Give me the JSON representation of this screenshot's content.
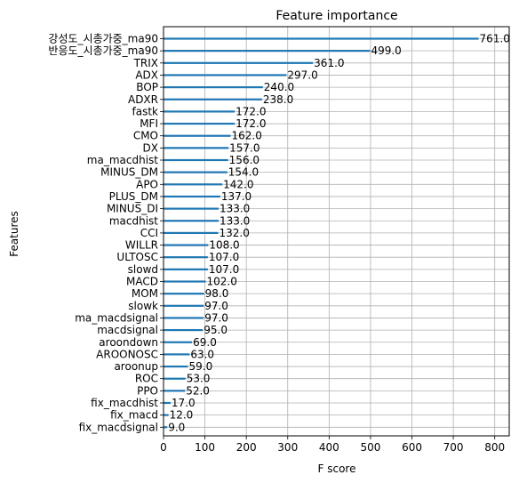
{
  "chart_data": {
    "type": "bar",
    "orientation": "horizontal",
    "title": "Feature importance",
    "xlabel": "F score",
    "ylabel": "Features",
    "xlim": [
      0,
      835
    ],
    "xticks": [
      0,
      100,
      200,
      300,
      400,
      500,
      600,
      700,
      800
    ],
    "grid": true,
    "bar_color": "#1f77b4",
    "categories": [
      "강성도_시총가중_ma90",
      "반응도_시총가중_ma90",
      "TRIX",
      "ADX",
      "BOP",
      "ADXR",
      "fastk",
      "MFI",
      "CMO",
      "DX",
      "ma_macdhist",
      "MINUS_DM",
      "APO",
      "PLUS_DM",
      "MINUS_DI",
      "macdhist",
      "CCI",
      "WILLR",
      "ULTOSC",
      "slowd",
      "MACD",
      "MOM",
      "slowk",
      "ma_macdsignal",
      "macdsignal",
      "aroondown",
      "AROONOSC",
      "aroonup",
      "ROC",
      "PPO",
      "fix_macdhist",
      "fix_macd",
      "fix_macdsignal"
    ],
    "values": [
      761,
      499,
      361,
      297,
      240,
      238,
      172,
      172,
      162,
      157,
      156,
      154,
      142,
      137,
      133,
      133,
      132,
      108,
      107,
      107,
      102,
      98,
      97,
      97,
      95,
      69,
      63,
      59,
      53,
      52,
      17,
      12,
      9
    ],
    "value_labels": [
      "761.0",
      "499.0",
      "361.0",
      "297.0",
      "240.0",
      "238.0",
      "172.0",
      "172.0",
      "162.0",
      "157.0",
      "156.0",
      "154.0",
      "142.0",
      "137.0",
      "133.0",
      "133.0",
      "132.0",
      "108.0",
      "107.0",
      "107.0",
      "102.0",
      "98.0",
      "97.0",
      "97.0",
      "95.0",
      "69.0",
      "63.0",
      "59.0",
      "53.0",
      "52.0",
      "17.0",
      "12.0",
      "9.0"
    ]
  }
}
